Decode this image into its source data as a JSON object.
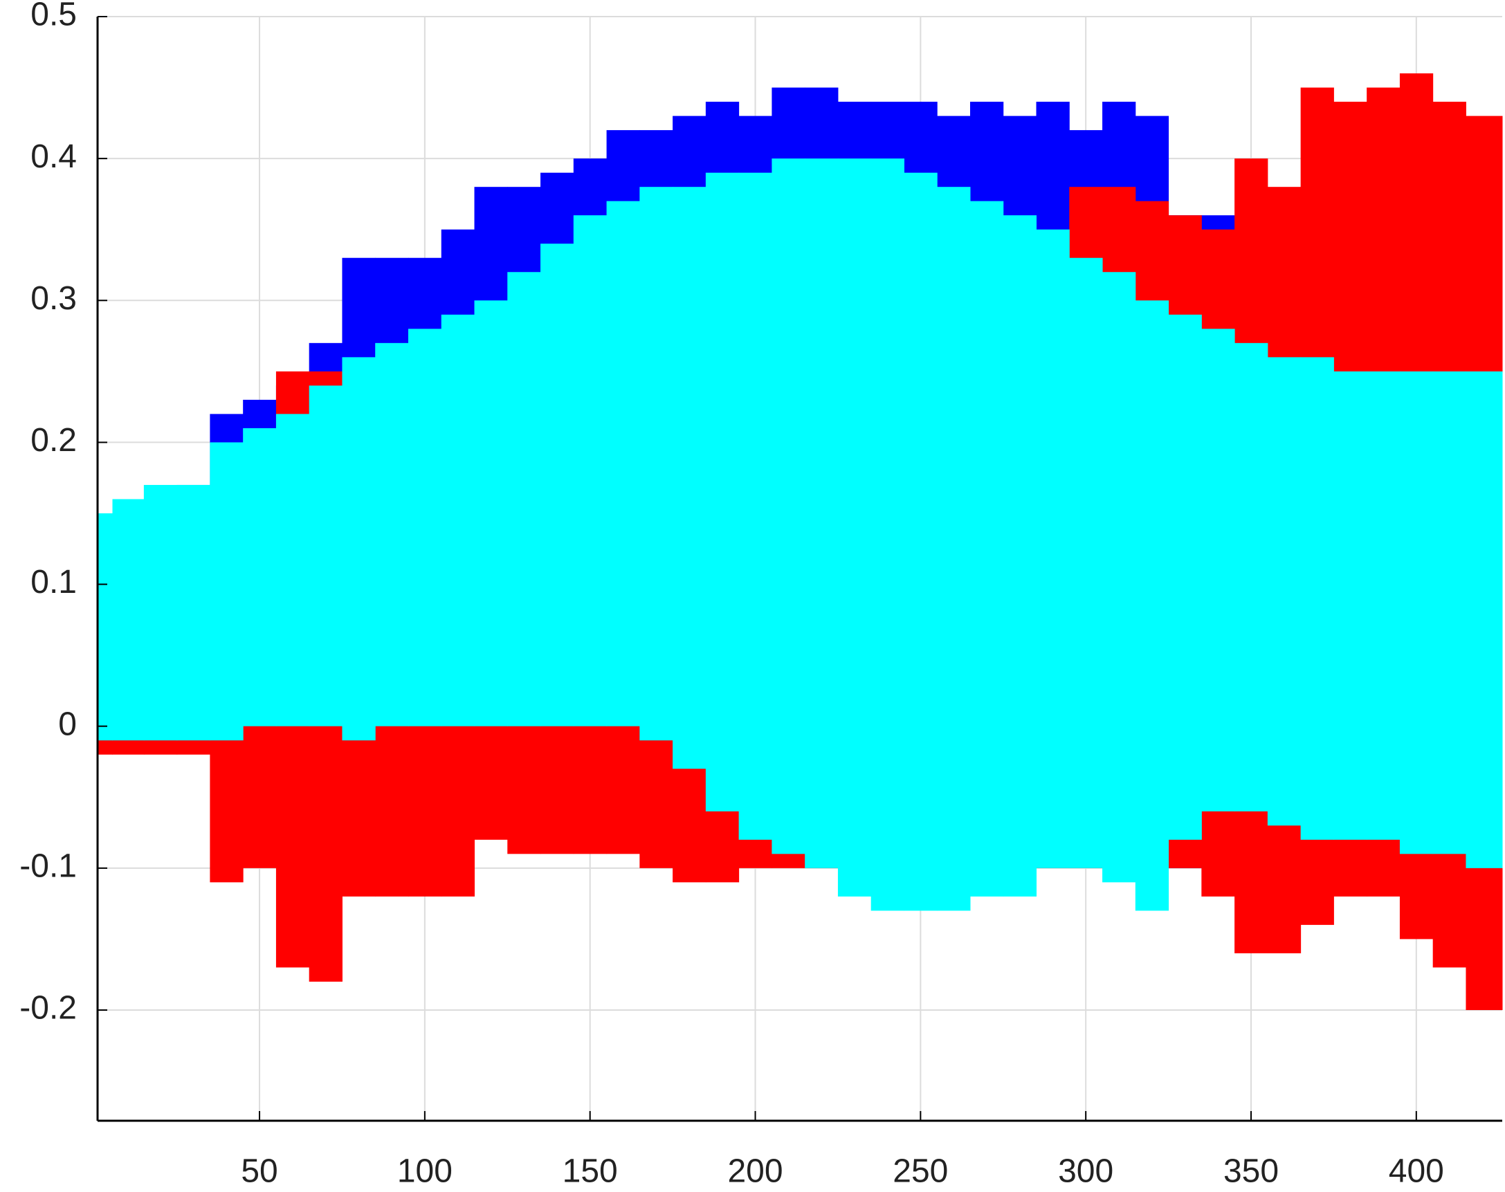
{
  "chart_data": {
    "type": "band",
    "x": [
      1,
      10,
      20,
      30,
      40,
      50,
      60,
      70,
      80,
      90,
      100,
      110,
      120,
      130,
      140,
      150,
      160,
      170,
      180,
      190,
      200,
      210,
      220,
      230,
      240,
      250,
      260,
      270,
      280,
      290,
      300,
      310,
      320,
      330,
      340,
      350,
      360,
      370,
      380,
      390,
      400,
      410,
      420
    ],
    "series": [
      {
        "color": "#0000ff",
        "high": [
          0.14,
          0.15,
          0.15,
          0.17,
          0.22,
          0.23,
          0.24,
          0.27,
          0.33,
          0.33,
          0.33,
          0.35,
          0.38,
          0.38,
          0.39,
          0.4,
          0.42,
          0.42,
          0.43,
          0.44,
          0.43,
          0.45,
          0.45,
          0.44,
          0.44,
          0.44,
          0.43,
          0.44,
          0.43,
          0.44,
          0.42,
          0.44,
          0.43,
          0.36,
          0.36,
          0.35,
          0.34,
          0.35,
          0.35,
          0.36,
          0.37,
          0.36,
          0.38
        ],
        "low": [
          0,
          0,
          0,
          0,
          0,
          0,
          0,
          0,
          0,
          0,
          0,
          0,
          0,
          0,
          0,
          0,
          0,
          0,
          0,
          0,
          0,
          0,
          0,
          0,
          0,
          0,
          0,
          0,
          0,
          0,
          0,
          0,
          0,
          -0.1,
          -0.1,
          -0.1,
          -0.1,
          -0.1,
          -0.1,
          -0.1,
          -0.1,
          -0.1,
          -0.1
        ]
      },
      {
        "color": "#ff0000",
        "high": [
          0.05,
          0.05,
          0.05,
          0.05,
          0.1,
          0.1,
          0.25,
          0.25,
          0.25,
          0.1,
          0.1,
          0.1,
          0.1,
          0.1,
          0.1,
          0.1,
          0.1,
          0.1,
          0.1,
          0.1,
          0.1,
          0.1,
          0.1,
          0.1,
          0.1,
          0.1,
          0.1,
          0.1,
          0.1,
          0.1,
          0.38,
          0.38,
          0.37,
          0.36,
          0.35,
          0.4,
          0.38,
          0.45,
          0.44,
          0.45,
          0.46,
          0.44,
          0.43
        ],
        "low": [
          -0.02,
          -0.02,
          -0.02,
          -0.02,
          -0.11,
          -0.1,
          -0.17,
          -0.18,
          -0.12,
          -0.12,
          -0.12,
          -0.12,
          -0.08,
          -0.09,
          -0.09,
          -0.09,
          -0.09,
          -0.1,
          -0.11,
          -0.11,
          -0.1,
          -0.1,
          -0.1,
          -0.1,
          -0.1,
          -0.1,
          -0.1,
          -0.1,
          -0.1,
          -0.1,
          -0.1,
          -0.1,
          -0.1,
          -0.1,
          -0.12,
          -0.16,
          -0.16,
          -0.14,
          -0.12,
          -0.12,
          -0.15,
          -0.17,
          -0.2
        ]
      },
      {
        "color": "#00ffff",
        "high": [
          0.15,
          0.16,
          0.17,
          0.17,
          0.2,
          0.21,
          0.22,
          0.24,
          0.26,
          0.27,
          0.28,
          0.29,
          0.3,
          0.32,
          0.34,
          0.36,
          0.37,
          0.38,
          0.38,
          0.39,
          0.39,
          0.4,
          0.4,
          0.4,
          0.4,
          0.39,
          0.38,
          0.37,
          0.36,
          0.35,
          0.33,
          0.32,
          0.3,
          0.29,
          0.28,
          0.27,
          0.26,
          0.26,
          0.25,
          0.25,
          0.25,
          0.25,
          0.25
        ],
        "low": [
          -0.01,
          -0.01,
          -0.01,
          -0.01,
          -0.01,
          0,
          0,
          0,
          -0.01,
          0,
          0,
          0,
          0,
          0,
          0,
          0,
          0,
          -0.01,
          -0.03,
          -0.06,
          -0.08,
          -0.09,
          -0.1,
          -0.12,
          -0.13,
          -0.13,
          -0.13,
          -0.12,
          -0.12,
          -0.1,
          -0.1,
          -0.11,
          -0.13,
          -0.08,
          -0.06,
          -0.06,
          -0.07,
          -0.08,
          -0.08,
          -0.08,
          -0.09,
          -0.09,
          -0.1
        ]
      }
    ],
    "xlim": [
      1,
      426
    ],
    "ylim": [
      -0.278,
      0.5
    ],
    "xticks": [
      50,
      100,
      150,
      200,
      250,
      300,
      350,
      400
    ],
    "yticks": [
      -0.2,
      -0.1,
      0,
      0.1,
      0.2,
      0.3,
      0.4,
      0.5
    ],
    "grid": true
  }
}
